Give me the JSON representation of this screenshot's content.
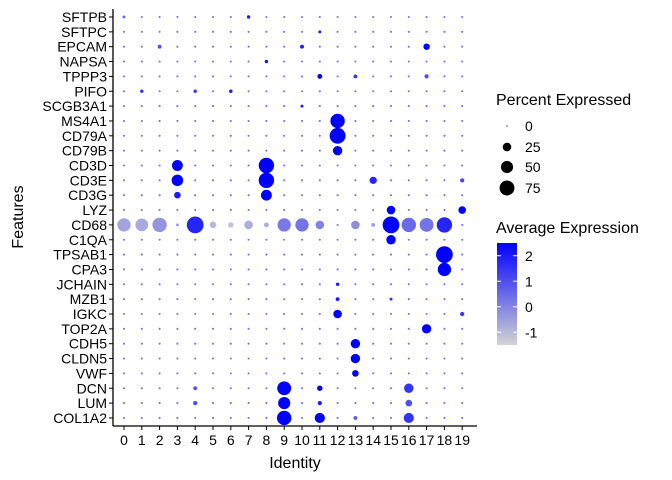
{
  "chart_data": {
    "type": "dotplot",
    "xlabel": "Identity",
    "ylabel": "Features",
    "x_categories": [
      "0",
      "1",
      "2",
      "3",
      "4",
      "5",
      "6",
      "7",
      "8",
      "9",
      "10",
      "11",
      "12",
      "13",
      "14",
      "15",
      "16",
      "17",
      "18",
      "19"
    ],
    "features": [
      "SFTPB",
      "SFTPC",
      "EPCAM",
      "NAPSA",
      "TPPP3",
      "PIFO",
      "SCGB3A1",
      "MS4A1",
      "CD79A",
      "CD79B",
      "CD3D",
      "CD3E",
      "CD3G",
      "LYZ",
      "CD68",
      "C1QA",
      "TPSAB1",
      "CPA3",
      "JCHAIN",
      "MZB1",
      "IGKC",
      "TOP2A",
      "CDH5",
      "CLDN5",
      "VWF",
      "DCN",
      "LUM",
      "COL1A2"
    ],
    "size_legend": {
      "title": "Percent Expressed",
      "values": [
        0,
        25,
        50,
        75
      ],
      "labels": [
        "0",
        "25",
        "50",
        "75"
      ]
    },
    "color_legend": {
      "title": "Average Expression",
      "min": -1.5,
      "max": 2.5,
      "ticks": [
        2,
        1,
        0,
        -1
      ],
      "tick_labels": [
        "2",
        "1",
        "0",
        "-1"
      ],
      "low_color": "#d3d3d3",
      "high_color": "#0000ff"
    },
    "default_dot": {
      "pct": 1.5,
      "avg": 0.3
    },
    "points": [
      {
        "feature": "SFTPB",
        "cluster": "0",
        "pct": 3,
        "avg": 0.5
      },
      {
        "feature": "SFTPB",
        "cluster": "7",
        "pct": 4,
        "avg": 2.0
      },
      {
        "feature": "SFTPC",
        "cluster": "11",
        "pct": 3,
        "avg": 2.0
      },
      {
        "feature": "EPCAM",
        "cluster": "2",
        "pct": 5,
        "avg": 1.0
      },
      {
        "feature": "EPCAM",
        "cluster": "10",
        "pct": 5,
        "avg": 2.0
      },
      {
        "feature": "EPCAM",
        "cluster": "17",
        "pct": 14,
        "avg": 2.5
      },
      {
        "feature": "NAPSA",
        "cluster": "8",
        "pct": 4,
        "avg": 2.2
      },
      {
        "feature": "TPPP3",
        "cluster": "11",
        "pct": 8,
        "avg": 2.5
      },
      {
        "feature": "TPPP3",
        "cluster": "13",
        "pct": 5,
        "avg": 1.5
      },
      {
        "feature": "TPPP3",
        "cluster": "17",
        "pct": 6,
        "avg": 1.0
      },
      {
        "feature": "PIFO",
        "cluster": "1",
        "pct": 4,
        "avg": 1.5
      },
      {
        "feature": "PIFO",
        "cluster": "4",
        "pct": 4,
        "avg": 1.5
      },
      {
        "feature": "PIFO",
        "cluster": "6",
        "pct": 4,
        "avg": 2.0
      },
      {
        "feature": "SCGB3A1",
        "cluster": "10",
        "pct": 3,
        "avg": 2.0
      },
      {
        "feature": "MS4A1",
        "cluster": "12",
        "pct": 70,
        "avg": 2.5
      },
      {
        "feature": "CD79A",
        "cluster": "12",
        "pct": 85,
        "avg": 2.5
      },
      {
        "feature": "CD79B",
        "cluster": "12",
        "pct": 30,
        "avg": 2.5
      },
      {
        "feature": "CD3D",
        "cluster": "3",
        "pct": 40,
        "avg": 2.5
      },
      {
        "feature": "CD3D",
        "cluster": "8",
        "pct": 80,
        "avg": 2.5
      },
      {
        "feature": "CD3E",
        "cluster": "3",
        "pct": 45,
        "avg": 2.5
      },
      {
        "feature": "CD3E",
        "cluster": "8",
        "pct": 80,
        "avg": 2.5
      },
      {
        "feature": "CD3E",
        "cluster": "14",
        "pct": 18,
        "avg": 1.8
      },
      {
        "feature": "CD3E",
        "cluster": "19",
        "pct": 6,
        "avg": 1.2
      },
      {
        "feature": "CD3G",
        "cluster": "3",
        "pct": 15,
        "avg": 2.0
      },
      {
        "feature": "CD3G",
        "cluster": "8",
        "pct": 40,
        "avg": 2.5
      },
      {
        "feature": "LYZ",
        "cluster": "15",
        "pct": 25,
        "avg": 2.5
      },
      {
        "feature": "LYZ",
        "cluster": "19",
        "pct": 20,
        "avg": 2.5
      },
      {
        "feature": "CD68",
        "cluster": "0",
        "pct": 60,
        "avg": -0.6
      },
      {
        "feature": "CD68",
        "cluster": "1",
        "pct": 55,
        "avg": -0.7
      },
      {
        "feature": "CD68",
        "cluster": "2",
        "pct": 70,
        "avg": -0.3
      },
      {
        "feature": "CD68",
        "cluster": "3",
        "pct": 3,
        "avg": -0.5
      },
      {
        "feature": "CD68",
        "cluster": "4",
        "pct": 95,
        "avg": 1.8
      },
      {
        "feature": "CD68",
        "cluster": "5",
        "pct": 15,
        "avg": -1.0
      },
      {
        "feature": "CD68",
        "cluster": "6",
        "pct": 10,
        "avg": -1.2
      },
      {
        "feature": "CD68",
        "cluster": "7",
        "pct": 25,
        "avg": -0.8
      },
      {
        "feature": "CD68",
        "cluster": "8",
        "pct": 8,
        "avg": -0.8
      },
      {
        "feature": "CD68",
        "cluster": "9",
        "pct": 60,
        "avg": 0.2
      },
      {
        "feature": "CD68",
        "cluster": "10",
        "pct": 60,
        "avg": 0.3
      },
      {
        "feature": "CD68",
        "cluster": "11",
        "pct": 25,
        "avg": 0.0
      },
      {
        "feature": "CD68",
        "cluster": "13",
        "pct": 25,
        "avg": -0.2
      },
      {
        "feature": "CD68",
        "cluster": "14",
        "pct": 5,
        "avg": -0.5
      },
      {
        "feature": "CD68",
        "cluster": "15",
        "pct": 95,
        "avg": 2.5
      },
      {
        "feature": "CD68",
        "cluster": "16",
        "pct": 70,
        "avg": 0.5
      },
      {
        "feature": "CD68",
        "cluster": "17",
        "pct": 65,
        "avg": 0.3
      },
      {
        "feature": "CD68",
        "cluster": "18",
        "pct": 80,
        "avg": 1.8
      },
      {
        "feature": "C1QA",
        "cluster": "15",
        "pct": 30,
        "avg": 2.5
      },
      {
        "feature": "TPSAB1",
        "cluster": "18",
        "pct": 95,
        "avg": 2.5
      },
      {
        "feature": "CPA3",
        "cluster": "18",
        "pct": 60,
        "avg": 2.5
      },
      {
        "feature": "JCHAIN",
        "cluster": "12",
        "pct": 4,
        "avg": 2.0
      },
      {
        "feature": "MZB1",
        "cluster": "12",
        "pct": 5,
        "avg": 2.0
      },
      {
        "feature": "MZB1",
        "cluster": "15",
        "pct": 3,
        "avg": 1.5
      },
      {
        "feature": "IGKC",
        "cluster": "12",
        "pct": 25,
        "avg": 2.5
      },
      {
        "feature": "IGKC",
        "cluster": "19",
        "pct": 6,
        "avg": 1.5
      },
      {
        "feature": "TOP2A",
        "cluster": "17",
        "pct": 30,
        "avg": 2.5
      },
      {
        "feature": "CDH5",
        "cluster": "13",
        "pct": 30,
        "avg": 2.5
      },
      {
        "feature": "CLDN5",
        "cluster": "13",
        "pct": 30,
        "avg": 2.5
      },
      {
        "feature": "VWF",
        "cluster": "13",
        "pct": 15,
        "avg": 2.5
      },
      {
        "feature": "DCN",
        "cluster": "4",
        "pct": 5,
        "avg": 1.0
      },
      {
        "feature": "DCN",
        "cluster": "9",
        "pct": 65,
        "avg": 2.5
      },
      {
        "feature": "DCN",
        "cluster": "11",
        "pct": 10,
        "avg": 2.5
      },
      {
        "feature": "DCN",
        "cluster": "16",
        "pct": 30,
        "avg": 1.5
      },
      {
        "feature": "LUM",
        "cluster": "4",
        "pct": 6,
        "avg": 1.0
      },
      {
        "feature": "LUM",
        "cluster": "9",
        "pct": 50,
        "avg": 2.5
      },
      {
        "feature": "LUM",
        "cluster": "11",
        "pct": 6,
        "avg": 2.0
      },
      {
        "feature": "LUM",
        "cluster": "16",
        "pct": 15,
        "avg": 1.0
      },
      {
        "feature": "COL1A2",
        "cluster": "9",
        "pct": 70,
        "avg": 2.5
      },
      {
        "feature": "COL1A2",
        "cluster": "11",
        "pct": 35,
        "avg": 2.5
      },
      {
        "feature": "COL1A2",
        "cluster": "13",
        "pct": 5,
        "avg": 0.8
      },
      {
        "feature": "COL1A2",
        "cluster": "16",
        "pct": 35,
        "avg": 1.5
      }
    ]
  }
}
